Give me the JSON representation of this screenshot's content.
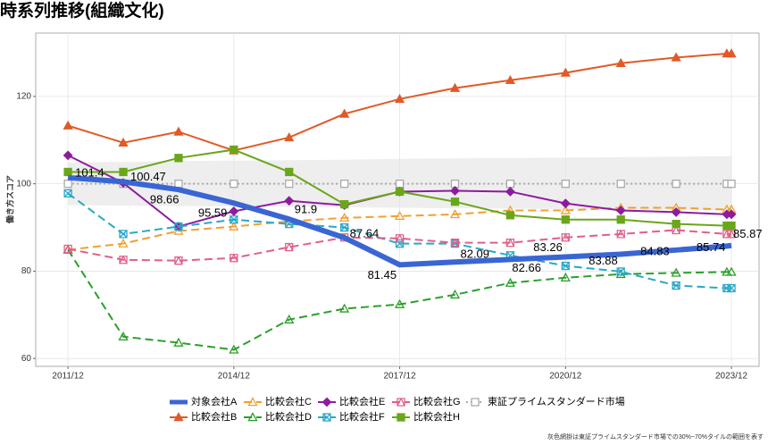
{
  "chart_data": {
    "type": "line",
    "title": "時系列推移(組織文化)",
    "ylabel": "働き方スコア",
    "note": "灰色網掛は東証プライムスタンダード市場での30%~70%タイルの範囲を表す",
    "x": [
      "2011-12",
      "2012-12",
      "2013-12",
      "2014-12",
      "2015-12",
      "2016-12",
      "2017-12",
      "2018-12",
      "2019-12",
      "2020-12",
      "2021-12",
      "2022-12",
      "2023-11",
      "2023-12"
    ],
    "xlim": [
      "2011-05",
      "2024-06"
    ],
    "xticks": [
      {
        "value": "2011-12",
        "label": "2011/12"
      },
      {
        "value": "2014-12",
        "label": "2014/12"
      },
      {
        "value": "2017-12",
        "label": "2017/12"
      },
      {
        "value": "2020-12",
        "label": "2020/12"
      },
      {
        "value": "2023-12",
        "label": "2023/12"
      }
    ],
    "ylim": [
      58.2,
      134.5
    ],
    "yticks": [
      60,
      80,
      100,
      120
    ],
    "grid": true,
    "band": {
      "color": "#eeeeee",
      "upper": [
        104.9,
        105.0,
        105.2,
        105.3,
        105.4,
        105.5,
        105.7,
        105.8,
        105.9,
        106.0,
        106.1,
        106.2,
        106.3,
        106.3
      ],
      "lower": [
        95.1,
        95.0,
        94.9,
        94.8,
        94.7,
        94.6,
        94.5,
        94.4,
        94.3,
        94.2,
        94.1,
        94.0,
        93.9,
        93.9
      ]
    },
    "series": [
      {
        "name": "東証プライムスタンダード市場",
        "color": "#aaaaaa",
        "dash": "dotted",
        "marker": "square-open",
        "values": [
          100,
          100,
          100,
          100,
          100,
          100,
          100,
          100,
          100,
          100,
          100,
          100,
          100,
          100
        ]
      },
      {
        "name": "比較会社B",
        "color": "#e05a28",
        "dash": "solid",
        "marker": "triangle",
        "values": [
          113.3,
          109.4,
          111.9,
          107.6,
          110.6,
          116.0,
          119.4,
          121.9,
          123.7,
          125.4,
          127.6,
          128.9,
          129.8,
          129.8
        ]
      },
      {
        "name": "比較会社C",
        "color": "#f0a030",
        "dash": "dashed",
        "marker": "triangle-open",
        "values": [
          84.9,
          86.3,
          89.2,
          90.2,
          91.4,
          92.2,
          92.6,
          93.0,
          93.9,
          93.9,
          94.5,
          94.5,
          94.1,
          94.1
        ]
      },
      {
        "name": "比較会社D",
        "color": "#2aa02a",
        "dash": "dashed",
        "marker": "triangle-open",
        "values": [
          84.9,
          65.0,
          63.6,
          62.0,
          68.9,
          71.4,
          72.4,
          74.6,
          77.3,
          78.5,
          79.3,
          79.6,
          79.8,
          79.8
        ]
      },
      {
        "name": "比較会社E",
        "color": "#8e1b9e",
        "dash": "solid",
        "marker": "diamond",
        "values": [
          106.5,
          100.2,
          90.2,
          93.7,
          96.1,
          95.1,
          98.2,
          98.4,
          98.2,
          95.5,
          93.9,
          93.5,
          93.0,
          93.0
        ]
      },
      {
        "name": "比較会社F",
        "color": "#29a8c8",
        "dash": "dashed",
        "marker": "square-x",
        "values": [
          97.8,
          88.5,
          90.2,
          91.8,
          90.8,
          90.0,
          86.3,
          86.3,
          83.6,
          81.2,
          79.9,
          76.7,
          76.1,
          76.1
        ]
      },
      {
        "name": "比較会社G",
        "color": "#e0608a",
        "dash": "dashed",
        "marker": "square-triangle",
        "values": [
          85.1,
          82.6,
          82.4,
          83.0,
          85.5,
          87.7,
          87.5,
          86.5,
          86.5,
          87.7,
          88.5,
          89.4,
          88.5,
          88.5
        ]
      },
      {
        "name": "比較会社H",
        "color": "#6aa61a",
        "dash": "solid",
        "marker": "square",
        "values": [
          102.7,
          102.7,
          105.9,
          107.8,
          102.7,
          95.3,
          98.2,
          95.9,
          92.8,
          91.8,
          91.8,
          90.8,
          90.4,
          90.4
        ]
      },
      {
        "name": "対象会社A",
        "color": "#3a66d4",
        "dash": "solid",
        "marker": "none",
        "linewidth": 6,
        "labels": true,
        "values": [
          101.4,
          100.47,
          98.66,
          95.59,
          91.9,
          87.64,
          81.45,
          82.09,
          82.66,
          83.26,
          83.88,
          84.83,
          85.74,
          85.87
        ]
      }
    ]
  }
}
